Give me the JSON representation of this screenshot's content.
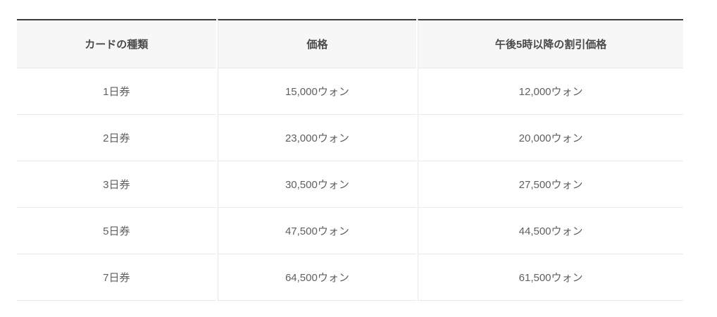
{
  "pricing_table": {
    "columns": [
      "カードの種類",
      "価格",
      "午後5時以降の割引価格"
    ],
    "rows": [
      [
        "1日券",
        "15,000ウォン",
        "12,000ウォン"
      ],
      [
        "2日券",
        "23,000ウォン",
        "20,000ウォン"
      ],
      [
        "3日券",
        "30,500ウォン",
        "27,500ウォン"
      ],
      [
        "5日券",
        "47,500ウォン",
        "44,500ウォン"
      ],
      [
        "7日券",
        "64,500ウォン",
        "61,500ウォン"
      ]
    ],
    "colors": {
      "top_border": "#3b3b3b",
      "header_background": "#f7f7f7",
      "divider": "#e9e9e9",
      "header_text": "#4a4a4a",
      "body_text": "#5f5f5f",
      "page_background": "#ffffff"
    }
  }
}
